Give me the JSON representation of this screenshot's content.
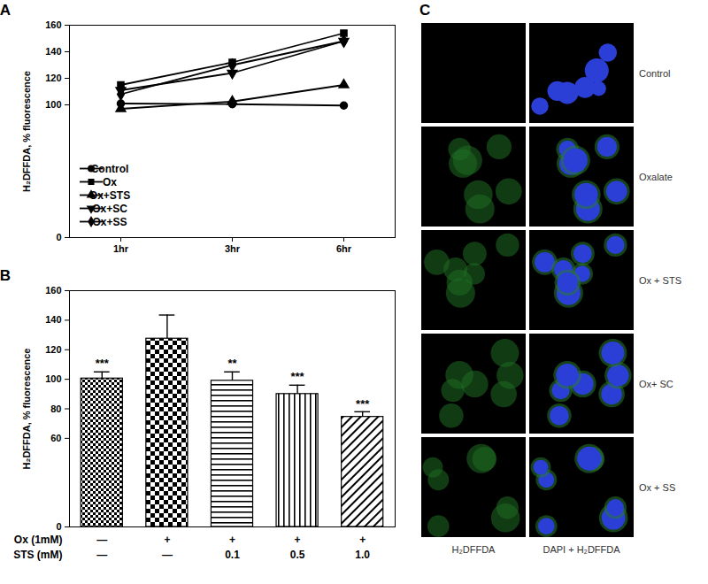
{
  "chart_data": [
    {
      "title": "A",
      "type": "line",
      "y_label": "H₂DFFDA, % fluorescence",
      "categories": [
        "1hr",
        "3hr",
        "6hr"
      ],
      "series": [
        {
          "name": "Control",
          "color": "#000000",
          "marker": "circle",
          "values": [
            101,
            100.5,
            99.5
          ]
        },
        {
          "name": "Ox",
          "color": "#000000",
          "marker": "square",
          "values": [
            115,
            132,
            154
          ]
        },
        {
          "name": "Ox+STS",
          "color": "#000000",
          "marker": "triangle-up",
          "values": [
            97,
            102.5,
            115
          ]
        },
        {
          "name": "Ox+SC",
          "color": "#000000",
          "marker": "triangle-down",
          "values": [
            111,
            124,
            148
          ]
        },
        {
          "name": "Ox+SS",
          "color": "#000000",
          "marker": "diamond",
          "values": [
            108,
            130,
            148
          ]
        }
      ],
      "ylim": [
        0,
        160
      ],
      "yticks": [
        0,
        100,
        120,
        140,
        160
      ],
      "legend": "lower left"
    },
    {
      "title": "B",
      "type": "bar",
      "y_label": "H₂DFFDA, % fluorescence",
      "values": [
        100.5,
        127.5,
        99,
        90,
        74.5
      ],
      "errors": [
        4.5,
        16,
        6,
        6,
        3.5
      ],
      "significance": [
        "***",
        null,
        "**",
        "***",
        "***"
      ],
      "row_labels": [
        "Ox (1mM)",
        "STS (mM)"
      ],
      "x_labels": [
        [
          "—",
          "+",
          "+",
          "+",
          "+"
        ],
        [
          "—",
          "—",
          "0.1",
          "0.5",
          "1.0"
        ]
      ],
      "color": "#000000",
      "ylim": [
        0,
        160
      ],
      "yticks": [
        0,
        60,
        80,
        100,
        120,
        140,
        160
      ]
    }
  ],
  "image_panel": {
    "title": "C",
    "row_labels": [
      "Control",
      "Oxalate",
      "Ox + STS",
      "Ox+ SC",
      "Ox + SS"
    ],
    "column_labels": [
      "H₂DFFDA",
      "DAPI + H₂DFFDA"
    ]
  }
}
